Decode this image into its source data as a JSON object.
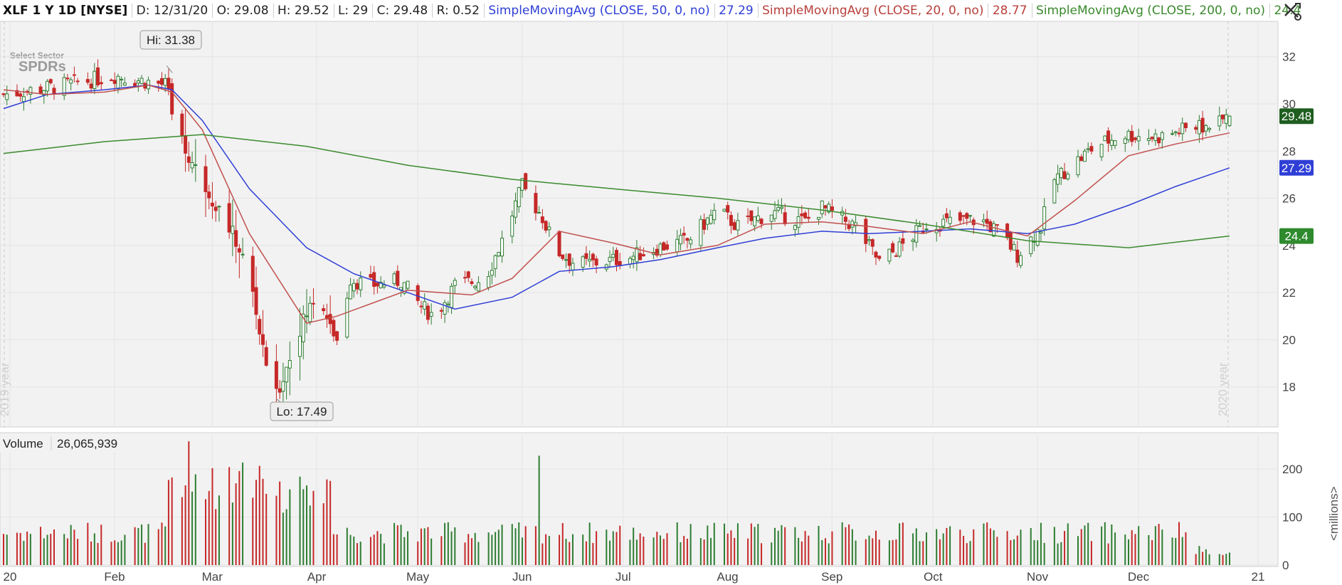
{
  "header": {
    "symbol": "XLF 1 Y 1D [NYSE]",
    "date": "D: 12/31/20",
    "open": "O: 29.08",
    "high": "H: 29.52",
    "low": "L: 29",
    "close": "C: 29.48",
    "range": "R: 0.52",
    "ma50_label": "SimpleMovingAvg (CLOSE, 50, 0, no)",
    "ma50_value": "27.29",
    "ma20_label": "SimpleMovingAvg (CLOSE, 20, 0, no)",
    "ma20_value": "28.77",
    "ma200_label": "SimpleMovingAvg (CLOSE, 200, 0, no)",
    "ma200_value": "24.4"
  },
  "watermark": {
    "line1": "Select Sector",
    "line2": "SPDRs"
  },
  "settings_icon": "crossed-tools-icon",
  "colors": {
    "up": "#2e7d32",
    "down": "#c62828",
    "ma50": "#2f3fd6",
    "ma20": "#c0504d",
    "ma200": "#3a8a2d",
    "grid": "#e4e4e4",
    "background": "#f2f2f2"
  },
  "chart_data": [
    {
      "type": "line",
      "title": "XLF 1 Y 1D [NYSE]",
      "x_ticks": [
        "20",
        "Feb",
        "Mar",
        "Apr",
        "May",
        "Jun",
        "Jul",
        "Aug",
        "Sep",
        "Oct",
        "Nov",
        "Dec",
        "21"
      ],
      "y_ticks": [
        18,
        20,
        22,
        24,
        26,
        28,
        30,
        32
      ],
      "ylim": [
        16.3,
        33.5
      ],
      "year_labels": [
        "2019 year",
        "2020 year"
      ],
      "annotations": {
        "high": "Hi: 31.38",
        "low": "Lo: 17.49"
      },
      "price_labels": {
        "last": "29.48",
        "ma50": "27.29",
        "ma200": "24.4"
      },
      "series": [
        {
          "name": "SimpleMovingAvg (CLOSE, 50, 0, no)",
          "x": [
            "01-02",
            "01-15",
            "02-01",
            "02-14",
            "02-21",
            "03-01",
            "03-15",
            "04-01",
            "04-15",
            "05-01",
            "05-15",
            "06-01",
            "06-15",
            "07-01",
            "07-15",
            "08-01",
            "08-15",
            "09-01",
            "09-15",
            "10-01",
            "10-15",
            "11-01",
            "11-15",
            "12-01",
            "12-15",
            "12-31"
          ],
          "values": [
            29.8,
            30.4,
            30.6,
            30.8,
            30.6,
            29.3,
            26.4,
            23.9,
            22.8,
            22.0,
            21.3,
            21.8,
            22.9,
            23.1,
            23.4,
            23.9,
            24.3,
            24.6,
            24.5,
            24.6,
            24.7,
            24.5,
            24.9,
            25.7,
            26.5,
            27.29
          ]
        },
        {
          "name": "SimpleMovingAvg (CLOSE, 20, 0, no)",
          "x": [
            "01-02",
            "01-15",
            "02-01",
            "02-14",
            "02-21",
            "03-01",
            "03-15",
            "04-01",
            "04-10",
            "05-01",
            "05-20",
            "06-01",
            "06-15",
            "07-01",
            "07-15",
            "08-01",
            "08-15",
            "09-01",
            "09-15",
            "10-01",
            "10-15",
            "11-01",
            "11-15",
            "12-01",
            "12-15",
            "12-31"
          ],
          "values": [
            30.6,
            30.4,
            30.5,
            30.8,
            30.5,
            28.9,
            24.5,
            20.7,
            21.0,
            22.1,
            21.9,
            22.6,
            24.6,
            24.1,
            23.6,
            24.0,
            24.9,
            25.0,
            24.8,
            24.5,
            25.0,
            24.4,
            25.9,
            27.8,
            28.3,
            28.77
          ]
        },
        {
          "name": "SimpleMovingAvg (CLOSE, 200, 0, no)",
          "x": [
            "01-02",
            "02-01",
            "03-01",
            "04-01",
            "05-01",
            "06-01",
            "07-01",
            "08-01",
            "09-01",
            "10-01",
            "11-01",
            "12-01",
            "12-31"
          ],
          "values": [
            27.9,
            28.4,
            28.7,
            28.2,
            27.4,
            26.8,
            26.4,
            26.0,
            25.5,
            24.9,
            24.2,
            23.9,
            24.4
          ]
        }
      ]
    },
    {
      "type": "bar",
      "title": "Volume",
      "latest_value": "26,065,939",
      "y_ticks": [
        0,
        100,
        200
      ],
      "ylabel": "<millions>",
      "ylim": [
        0,
        270
      ]
    }
  ]
}
